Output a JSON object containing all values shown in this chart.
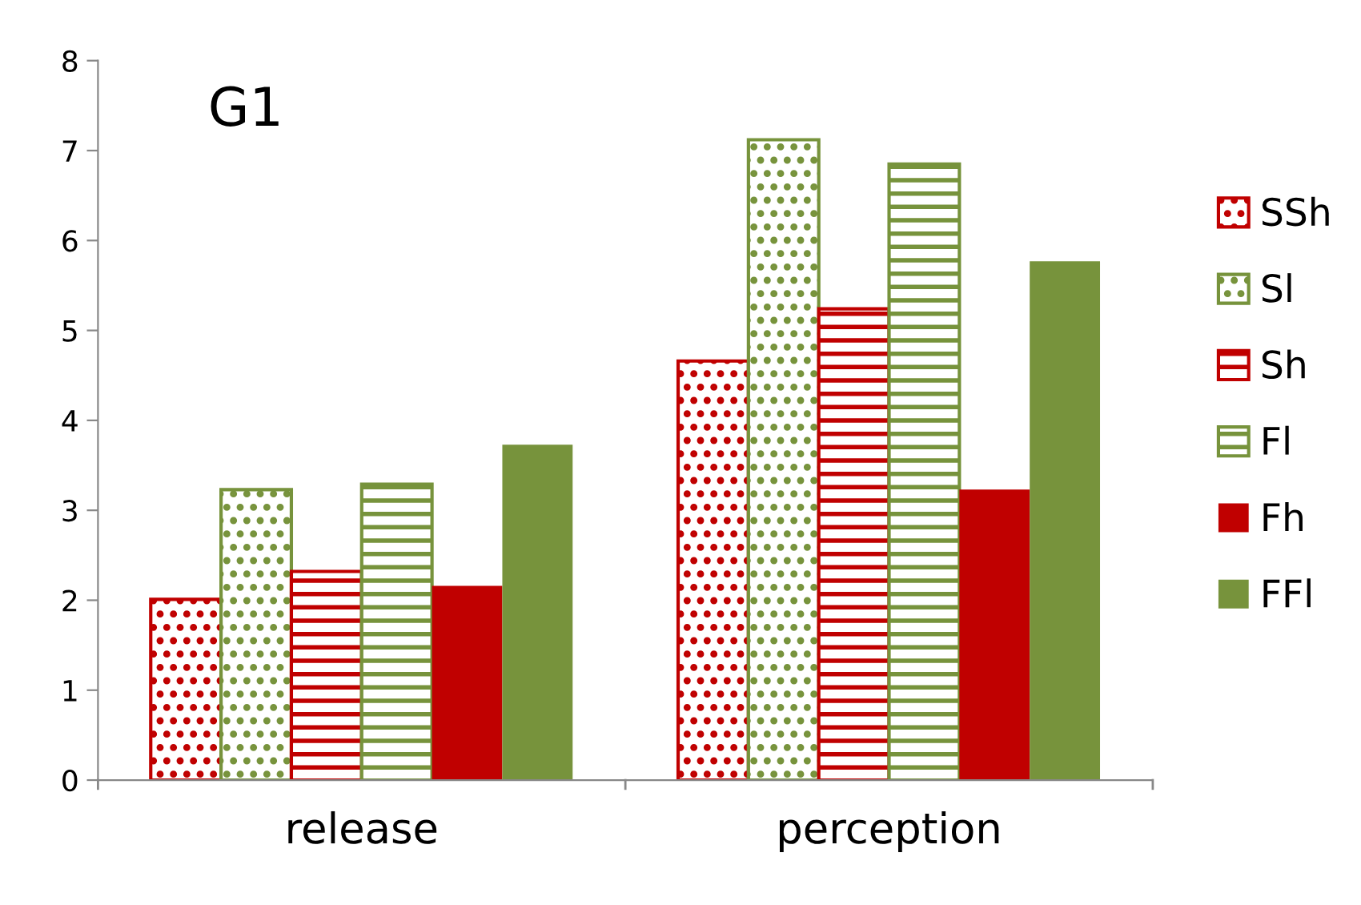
{
  "chart_data": {
    "type": "bar",
    "title": "G1",
    "categories": [
      "release",
      "perception"
    ],
    "series": [
      {
        "name": "SSh",
        "color": "#c00000",
        "values": [
          2.01,
          4.66
        ]
      },
      {
        "name": "Sl",
        "color": "#77933c",
        "values": [
          3.23,
          7.12
        ]
      },
      {
        "name": "Sh",
        "color": "#c00000",
        "values": [
          2.32,
          5.24
        ]
      },
      {
        "name": "Fl",
        "color": "#77933c",
        "values": [
          3.29,
          6.85
        ]
      },
      {
        "name": "Fh",
        "color": "#c00000",
        "values": [
          2.16,
          3.23
        ]
      },
      {
        "name": "FFl",
        "color": "#77933c",
        "values": [
          3.73,
          5.77
        ]
      }
    ],
    "ylim": [
      0,
      8
    ],
    "yticks": [
      0,
      1,
      2,
      3,
      4,
      5,
      6,
      7,
      8
    ],
    "grid": false,
    "legend": "right"
  }
}
